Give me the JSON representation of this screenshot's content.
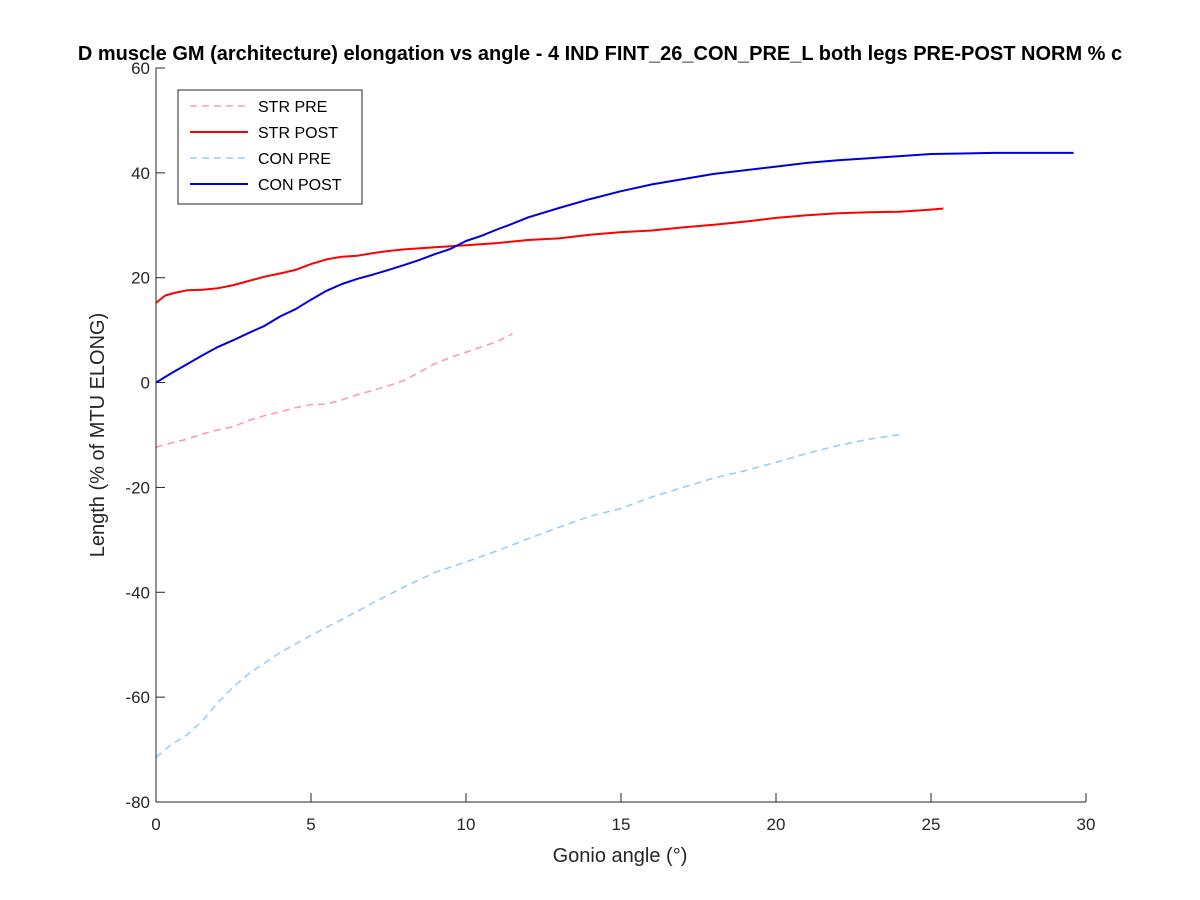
{
  "chart_data": {
    "type": "line",
    "title": "D muscle GM (architecture) elongation vs angle - 4 IND FINT_26_CON_PRE_L both legs PRE-POST NORM % c",
    "xlabel": "Gonio angle (°)",
    "ylabel": "Length (% of MTU ELONG)",
    "xlim": [
      0,
      30
    ],
    "ylim": [
      -80,
      60
    ],
    "xticks": [
      0,
      5,
      10,
      15,
      20,
      25,
      30
    ],
    "yticks": [
      -80,
      -60,
      -40,
      -20,
      0,
      20,
      40,
      60
    ],
    "grid": false,
    "legend_position": "top-left",
    "series": [
      {
        "name": "STR PRE",
        "color": "#ff99bb",
        "style": "dashed",
        "x": [
          0,
          0.5,
          1,
          1.5,
          2,
          2.5,
          3,
          3.5,
          4,
          4.5,
          5,
          5.5,
          6,
          6.5,
          7,
          7.5,
          8,
          8.5,
          9,
          9.5,
          10,
          10.5,
          11,
          11.5
        ],
        "y": [
          -12.3,
          -11.5,
          -10.8,
          -9.8,
          -9.0,
          -8.4,
          -7.2,
          -6.3,
          -5.6,
          -4.8,
          -4.2,
          -4.1,
          -3.3,
          -2.3,
          -1.5,
          -0.6,
          0.4,
          2.0,
          3.6,
          4.8,
          5.8,
          6.8,
          7.8,
          9.3
        ]
      },
      {
        "name": "STR POST",
        "color": "#ff0000",
        "style": "solid",
        "x": [
          0,
          0.3,
          0.6,
          1,
          1.5,
          2,
          2.5,
          3,
          3.5,
          4,
          4.5,
          5,
          5.5,
          6,
          6.5,
          7,
          7.5,
          8,
          9,
          10,
          11,
          12,
          13,
          14,
          15,
          16,
          17,
          18,
          19,
          20,
          21,
          22,
          23,
          24,
          25,
          25.4
        ],
        "y": [
          15.2,
          16.6,
          17.1,
          17.6,
          17.7,
          18.0,
          18.6,
          19.4,
          20.2,
          20.8,
          21.5,
          22.6,
          23.5,
          24.0,
          24.2,
          24.7,
          25.1,
          25.4,
          25.8,
          26.2,
          26.6,
          27.2,
          27.5,
          28.2,
          28.7,
          29.0,
          29.6,
          30.1,
          30.7,
          31.4,
          31.9,
          32.3,
          32.5,
          32.6,
          33.0,
          33.2
        ]
      },
      {
        "name": "CON PRE",
        "color": "#99ccff",
        "style": "dashed",
        "x": [
          0,
          0.5,
          1,
          1.5,
          2,
          2.5,
          3,
          4,
          5,
          6,
          7,
          8,
          9,
          10,
          11,
          12,
          13,
          14,
          15,
          16,
          17,
          18,
          19,
          20,
          21,
          22,
          23,
          24
        ],
        "y": [
          -71.5,
          -69.0,
          -67.2,
          -64.5,
          -61.0,
          -58.0,
          -55.5,
          -51.5,
          -48.2,
          -45.2,
          -42.0,
          -39.0,
          -36.2,
          -34.2,
          -32.1,
          -29.8,
          -27.6,
          -25.5,
          -24.0,
          -21.8,
          -20.0,
          -18.2,
          -16.8,
          -15.2,
          -13.5,
          -12.0,
          -10.8,
          -9.9
        ]
      },
      {
        "name": "CON POST",
        "color": "#0000dd",
        "style": "solid",
        "x": [
          0,
          0.5,
          1,
          1.5,
          2,
          2.5,
          3,
          3.5,
          4,
          4.5,
          5,
          5.5,
          6,
          6.5,
          7,
          7.5,
          8,
          8.5,
          9,
          9.5,
          10,
          10.5,
          11,
          11.5,
          12,
          13,
          14,
          15,
          16,
          17,
          18,
          19,
          20,
          21,
          22,
          23,
          24,
          25,
          26,
          27,
          28,
          29,
          29.6
        ],
        "y": [
          0,
          1.8,
          3.5,
          5.2,
          6.8,
          8.1,
          9.5,
          10.8,
          12.6,
          14.0,
          15.8,
          17.5,
          18.8,
          19.8,
          20.6,
          21.5,
          22.4,
          23.4,
          24.5,
          25.5,
          27.0,
          28.0,
          29.2,
          30.3,
          31.5,
          33.3,
          35.0,
          36.5,
          37.8,
          38.8,
          39.8,
          40.5,
          41.2,
          41.9,
          42.4,
          42.8,
          43.2,
          43.6,
          43.7,
          43.8,
          43.8,
          43.8,
          43.8
        ]
      }
    ]
  }
}
